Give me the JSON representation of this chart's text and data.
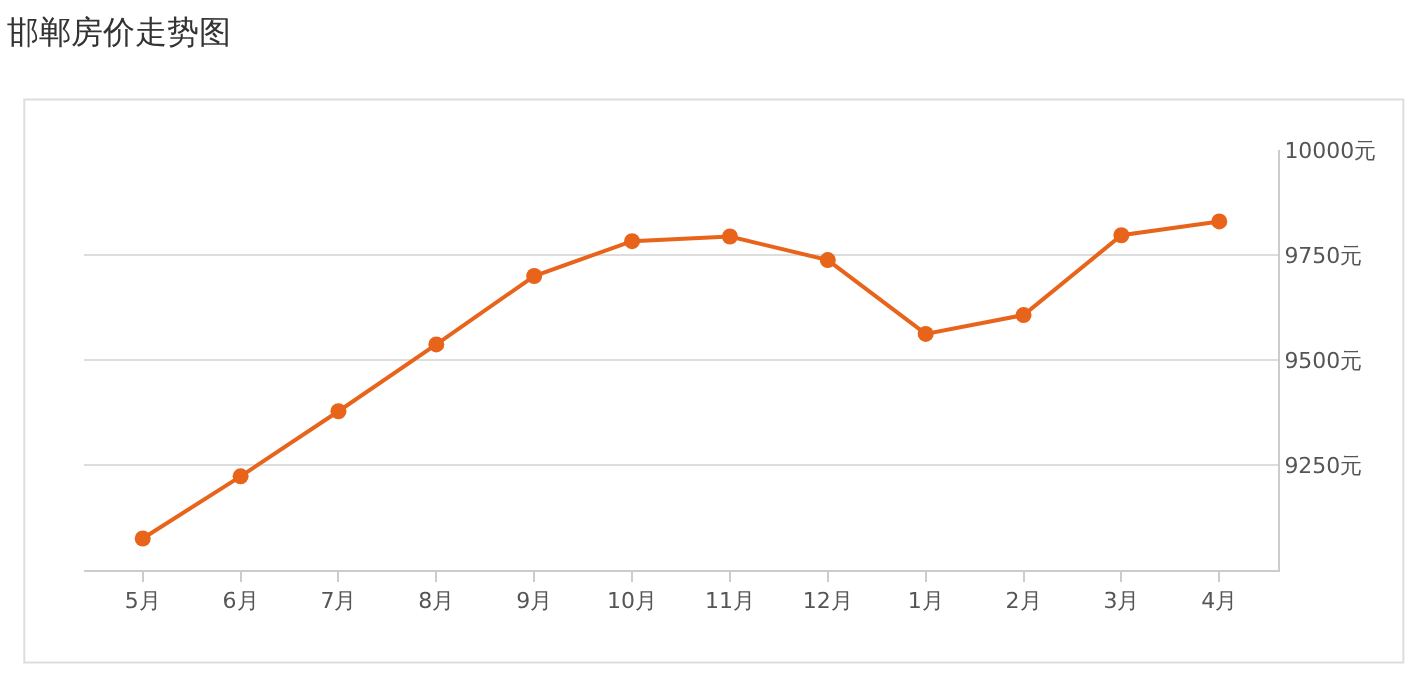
{
  "chart_data": {
    "type": "line",
    "title": "邯郸房价走势图",
    "categories": [
      "5月",
      "6月",
      "7月",
      "8月",
      "9月",
      "10月",
      "11月",
      "12月",
      "1月",
      "2月",
      "3月",
      "4月"
    ],
    "series": [
      {
        "color": "#e8641b",
        "values": [
          9075,
          9223,
          9378,
          9537,
          9700,
          9783,
          9794,
          9738,
          9562,
          9607,
          9797,
          9830
        ]
      }
    ],
    "ylim": [
      9000,
      10000
    ],
    "yticks": [
      {
        "value": 9250,
        "label": "9250元"
      },
      {
        "value": 9500,
        "label": "9500元"
      },
      {
        "value": 9750,
        "label": "9750元"
      },
      {
        "value": 10000,
        "label": "10000元"
      }
    ],
    "grid": "y",
    "marker": "circle",
    "line_style": "solid"
  }
}
